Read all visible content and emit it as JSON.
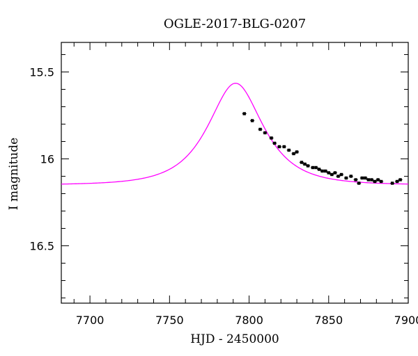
{
  "chart_data": {
    "type": "scatter",
    "title": "OGLE-2017-BLG-0207",
    "xlabel": "HJD - 2450000",
    "ylabel": "I magnitude",
    "xlim": [
      7682,
      7900
    ],
    "ylim": [
      16.83,
      15.33
    ],
    "y_inverted": true,
    "grid": false,
    "x_ticks": [
      7700,
      7750,
      7800,
      7850,
      7900
    ],
    "x_tick_labels": [
      "7700",
      "7750",
      "7800",
      "7850",
      "7900"
    ],
    "y_ticks": [
      15.5,
      16,
      16.5
    ],
    "y_tick_labels": [
      "15.5",
      "16",
      "16.5"
    ],
    "x_minor_step": 10,
    "y_minor_step": 0.1,
    "model": {
      "type": "line",
      "color": "#ff00ff",
      "t0": 7791.5,
      "u0": 0.68,
      "tE": 25.5,
      "baseline": 16.15,
      "x_range": [
        7682,
        7900
      ]
    },
    "series": [
      {
        "type": "scatter",
        "color": "#000000",
        "x": [
          7797,
          7802,
          7807,
          7810,
          7814,
          7816,
          7819,
          7822,
          7825,
          7828,
          7830,
          7833,
          7835,
          7837,
          7840,
          7842,
          7844,
          7846,
          7848,
          7850,
          7852,
          7854,
          7856,
          7858,
          7861,
          7864,
          7867,
          7869,
          7871,
          7873,
          7875,
          7877,
          7879,
          7881,
          7883,
          7890,
          7893,
          7895
        ],
        "y": [
          15.74,
          15.78,
          15.83,
          15.85,
          15.88,
          15.91,
          15.93,
          15.93,
          15.95,
          15.97,
          15.96,
          16.02,
          16.03,
          16.04,
          16.05,
          16.05,
          16.06,
          16.07,
          16.07,
          16.08,
          16.09,
          16.08,
          16.1,
          16.09,
          16.11,
          16.1,
          16.12,
          16.14,
          16.11,
          16.11,
          16.12,
          16.12,
          16.13,
          16.12,
          16.13,
          16.14,
          16.13,
          16.12
        ]
      }
    ]
  }
}
